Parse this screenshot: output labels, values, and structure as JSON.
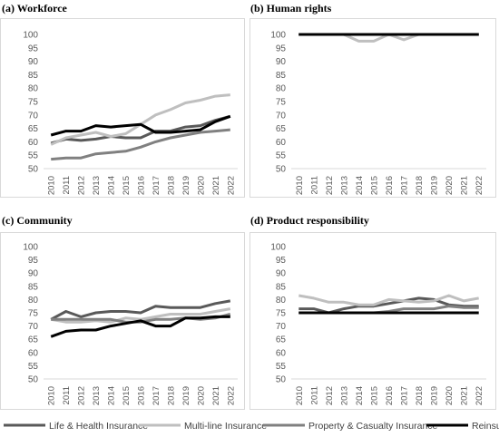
{
  "chart_data": [
    {
      "type": "line",
      "title": "(a)   Workforce",
      "x": [
        "2010",
        "2011",
        "2012",
        "2013",
        "2014",
        "2015",
        "2016",
        "2017",
        "2018",
        "2019",
        "2020",
        "2021",
        "2022"
      ],
      "ylim": [
        50,
        100
      ],
      "yticks": [
        50,
        55,
        60,
        65,
        70,
        75,
        80,
        85,
        90,
        95,
        100
      ],
      "grid": false,
      "series": [
        {
          "name": "Life & Health Insurance",
          "values": [
            59.5,
            61,
            60.5,
            61,
            62,
            61.5,
            61.5,
            64,
            64,
            65.5,
            66,
            68,
            69.5
          ]
        },
        {
          "name": "Multi-line Insurance",
          "values": [
            59,
            61.5,
            62.5,
            63.5,
            62,
            63,
            66.5,
            70,
            72,
            74.5,
            75.5,
            77,
            77.5
          ]
        },
        {
          "name": "Property & Casualty Insurance",
          "values": [
            53.5,
            54,
            54,
            55.5,
            56,
            56.5,
            58,
            60,
            61.5,
            62.5,
            63.5,
            64,
            64.5
          ]
        },
        {
          "name": "Reinsurance",
          "values": [
            62.5,
            64,
            64,
            66,
            65.5,
            66,
            66.5,
            63.5,
            63.5,
            64,
            64.5,
            67.5,
            69.5
          ]
        }
      ]
    },
    {
      "type": "line",
      "title": "(b)   Human rights",
      "x": [
        "2010",
        "2011",
        "2012",
        "2013",
        "2014",
        "2015",
        "2016",
        "2017",
        "2018",
        "2019",
        "2020",
        "2021",
        "2022"
      ],
      "ylim": [
        50,
        100
      ],
      "yticks": [
        50,
        55,
        60,
        65,
        70,
        75,
        80,
        85,
        90,
        95,
        100
      ],
      "grid": false,
      "series": [
        {
          "name": "Life & Health Insurance",
          "values": [
            100,
            100,
            100,
            100,
            100,
            100,
            100,
            100,
            100,
            100,
            100,
            100,
            100
          ]
        },
        {
          "name": "Multi-line Insurance",
          "values": [
            100,
            100,
            100,
            100,
            97.5,
            97.5,
            100,
            98,
            100,
            100,
            100,
            100,
            100
          ]
        },
        {
          "name": "Property & Casualty Insurance",
          "values": [
            100,
            100,
            100,
            100,
            100,
            100,
            100,
            100,
            100,
            100,
            100,
            100,
            100
          ]
        },
        {
          "name": "Reinsurance",
          "values": [
            100,
            100,
            100,
            100,
            100,
            100,
            100,
            100,
            100,
            100,
            100,
            100,
            100
          ]
        }
      ]
    },
    {
      "type": "line",
      "title": "(c)   Community",
      "x": [
        "2010",
        "2011",
        "2012",
        "2013",
        "2014",
        "2015",
        "2016",
        "2017",
        "2018",
        "2019",
        "2020",
        "2021",
        "2022"
      ],
      "ylim": [
        50,
        100
      ],
      "yticks": [
        50,
        55,
        60,
        65,
        70,
        75,
        80,
        85,
        90,
        95,
        100
      ],
      "grid": false,
      "series": [
        {
          "name": "Life & Health Insurance",
          "values": [
            72.5,
            75.5,
            73.5,
            75,
            75.5,
            75.5,
            75,
            77.5,
            77,
            77,
            77,
            78.5,
            79.5
          ]
        },
        {
          "name": "Multi-line Insurance",
          "values": [
            72.5,
            71.5,
            71.5,
            72,
            71.5,
            73,
            72.5,
            73.5,
            74.5,
            74.5,
            74.5,
            75.5,
            76.5
          ]
        },
        {
          "name": "Property & Casualty Insurance",
          "values": [
            72.5,
            72.5,
            72.5,
            72.5,
            72.5,
            71.5,
            71.5,
            72.5,
            72.5,
            73,
            72.5,
            73,
            74.5
          ]
        },
        {
          "name": "Reinsurance",
          "values": [
            66,
            68,
            68.5,
            68.5,
            70,
            71,
            72,
            70,
            70,
            73,
            73,
            73.5,
            73.5
          ]
        }
      ]
    },
    {
      "type": "line",
      "title": "(d)   Product responsibility",
      "x": [
        "2010",
        "2011",
        "2012",
        "2013",
        "2014",
        "2015",
        "2016",
        "2017",
        "2018",
        "2019",
        "2020",
        "2021",
        "2022"
      ],
      "ylim": [
        50,
        100
      ],
      "yticks": [
        50,
        55,
        60,
        65,
        70,
        75,
        80,
        85,
        90,
        95,
        100
      ],
      "grid": false,
      "series": [
        {
          "name": "Life & Health Insurance",
          "values": [
            76.5,
            76.5,
            75,
            76.5,
            77.5,
            77.5,
            78.5,
            79.5,
            80.5,
            80,
            78,
            77.5,
            77.5
          ]
        },
        {
          "name": "Multi-line Insurance",
          "values": [
            81.5,
            80.5,
            79,
            79,
            78,
            78,
            80,
            79.5,
            79,
            79.5,
            81.5,
            79.5,
            80.5
          ]
        },
        {
          "name": "Property & Casualty Insurance",
          "values": [
            75,
            75,
            75,
            75,
            75,
            75,
            75.5,
            76.5,
            76.5,
            76.5,
            77.5,
            77,
            77
          ]
        },
        {
          "name": "Reinsurance",
          "values": [
            75,
            75,
            75,
            75,
            75,
            75,
            75,
            75,
            75,
            75,
            75,
            75,
            75
          ]
        }
      ]
    }
  ],
  "legend": {
    "placement": "bottom",
    "items": [
      {
        "label": "Life & Health Insurance",
        "color": "#595959"
      },
      {
        "label": "Multi-line Insurance",
        "color": "#bfbfbf"
      },
      {
        "label": "Property & Casualty Insurance",
        "color": "#808080"
      },
      {
        "label": "Reinsurance",
        "color": "#000000"
      }
    ]
  }
}
